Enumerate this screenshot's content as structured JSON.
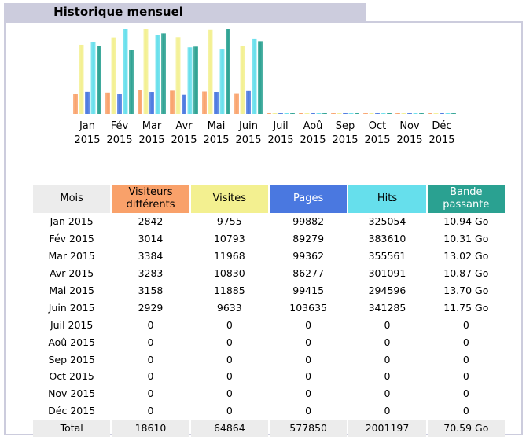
{
  "title": "Historique mensuel",
  "colors": {
    "visitors": "#f9a16a",
    "visits": "#f3f090",
    "pages": "#4a78e0",
    "hits": "#66dfec",
    "bandwidth": "#2aa191",
    "header_bg": "#ececec",
    "title_tab": "#ccccdd"
  },
  "chart_data": {
    "type": "bar",
    "categories": [
      {
        "month": "Jan",
        "year": "2015"
      },
      {
        "month": "Fév",
        "year": "2015"
      },
      {
        "month": "Mar",
        "year": "2015"
      },
      {
        "month": "Avr",
        "year": "2015"
      },
      {
        "month": "Mai",
        "year": "2015"
      },
      {
        "month": "Juin",
        "year": "2015"
      },
      {
        "month": "Juil",
        "year": "2015"
      },
      {
        "month": "Aoû",
        "year": "2015"
      },
      {
        "month": "Sep",
        "year": "2015"
      },
      {
        "month": "Oct",
        "year": "2015"
      },
      {
        "month": "Nov",
        "year": "2015"
      },
      {
        "month": "Déc",
        "year": "2015"
      }
    ],
    "series": [
      {
        "name": "Visiteurs différents",
        "color_key": "visitors",
        "values": [
          2842,
          3014,
          3384,
          3283,
          3158,
          2929,
          0,
          0,
          0,
          0,
          0,
          0
        ]
      },
      {
        "name": "Visites",
        "color_key": "visits",
        "values": [
          9755,
          10793,
          11968,
          10830,
          11885,
          9633,
          0,
          0,
          0,
          0,
          0,
          0
        ]
      },
      {
        "name": "Pages",
        "color_key": "pages",
        "values": [
          99882,
          89279,
          99362,
          86277,
          99415,
          103635,
          0,
          0,
          0,
          0,
          0,
          0
        ]
      },
      {
        "name": "Hits",
        "color_key": "hits",
        "values": [
          325054,
          383610,
          355561,
          301091,
          294596,
          341285,
          0,
          0,
          0,
          0,
          0,
          0
        ]
      },
      {
        "name": "Bande passante",
        "color_key": "bandwidth",
        "values": [
          10.94,
          10.31,
          13.02,
          10.87,
          13.7,
          11.75,
          0,
          0,
          0,
          0,
          0,
          0
        ]
      }
    ]
  },
  "table": {
    "headers": {
      "month": "Mois",
      "visitors": "Visiteurs différents",
      "visits": "Visites",
      "pages": "Pages",
      "hits": "Hits",
      "bandwidth": "Bande passante"
    },
    "rows": [
      {
        "month": "Jan 2015",
        "visitors": "2842",
        "visits": "9755",
        "pages": "99882",
        "hits": "325054",
        "bandwidth": "10.94 Go"
      },
      {
        "month": "Fév 2015",
        "visitors": "3014",
        "visits": "10793",
        "pages": "89279",
        "hits": "383610",
        "bandwidth": "10.31 Go"
      },
      {
        "month": "Mar 2015",
        "visitors": "3384",
        "visits": "11968",
        "pages": "99362",
        "hits": "355561",
        "bandwidth": "13.02 Go"
      },
      {
        "month": "Avr 2015",
        "visitors": "3283",
        "visits": "10830",
        "pages": "86277",
        "hits": "301091",
        "bandwidth": "10.87 Go"
      },
      {
        "month": "Mai 2015",
        "visitors": "3158",
        "visits": "11885",
        "pages": "99415",
        "hits": "294596",
        "bandwidth": "13.70 Go"
      },
      {
        "month": "Juin 2015",
        "visitors": "2929",
        "visits": "9633",
        "pages": "103635",
        "hits": "341285",
        "bandwidth": "11.75 Go"
      },
      {
        "month": "Juil 2015",
        "visitors": "0",
        "visits": "0",
        "pages": "0",
        "hits": "0",
        "bandwidth": "0"
      },
      {
        "month": "Aoû 2015",
        "visitors": "0",
        "visits": "0",
        "pages": "0",
        "hits": "0",
        "bandwidth": "0"
      },
      {
        "month": "Sep 2015",
        "visitors": "0",
        "visits": "0",
        "pages": "0",
        "hits": "0",
        "bandwidth": "0"
      },
      {
        "month": "Oct 2015",
        "visitors": "0",
        "visits": "0",
        "pages": "0",
        "hits": "0",
        "bandwidth": "0"
      },
      {
        "month": "Nov 2015",
        "visitors": "0",
        "visits": "0",
        "pages": "0",
        "hits": "0",
        "bandwidth": "0"
      },
      {
        "month": "Déc 2015",
        "visitors": "0",
        "visits": "0",
        "pages": "0",
        "hits": "0",
        "bandwidth": "0"
      }
    ],
    "total": {
      "month": "Total",
      "visitors": "18610",
      "visits": "64864",
      "pages": "577850",
      "hits": "2001197",
      "bandwidth": "70.59 Go"
    }
  }
}
